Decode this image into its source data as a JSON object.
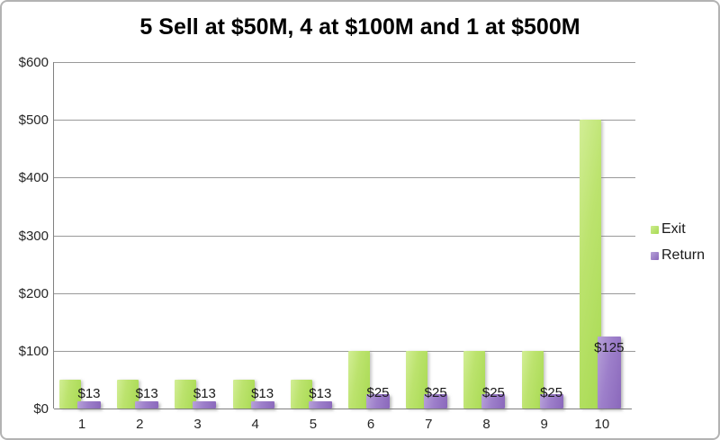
{
  "title": "5 Sell at $50M, 4 at $100M and 1 at $500M",
  "chart_data": {
    "type": "bar",
    "categories": [
      "1",
      "2",
      "3",
      "4",
      "5",
      "6",
      "7",
      "8",
      "9",
      "10"
    ],
    "series": [
      {
        "name": "Exit",
        "color": "#b2e063",
        "values": [
          50,
          50,
          50,
          50,
          50,
          100,
          100,
          100,
          100,
          500
        ]
      },
      {
        "name": "Return",
        "color": "#9678c4",
        "values": [
          13,
          13,
          13,
          13,
          13,
          25,
          25,
          25,
          25,
          125
        ]
      }
    ],
    "data_labels": {
      "series": "Return",
      "values": [
        "$13",
        "$13",
        "$13",
        "$13",
        "$13",
        "$25",
        "$25",
        "$25",
        "$25",
        "$125"
      ]
    },
    "title": "5 Sell at $50M, 4 at $100M and 1 at $500M",
    "xlabel": "",
    "ylabel": "",
    "ylim": [
      0,
      600
    ],
    "ytick_interval": 100,
    "yticks": [
      "$0",
      "$100",
      "$200",
      "$300",
      "$400",
      "$500",
      "$600"
    ],
    "grid": true,
    "legend_position": "right",
    "legend_entries": [
      "Exit",
      "Return"
    ]
  }
}
